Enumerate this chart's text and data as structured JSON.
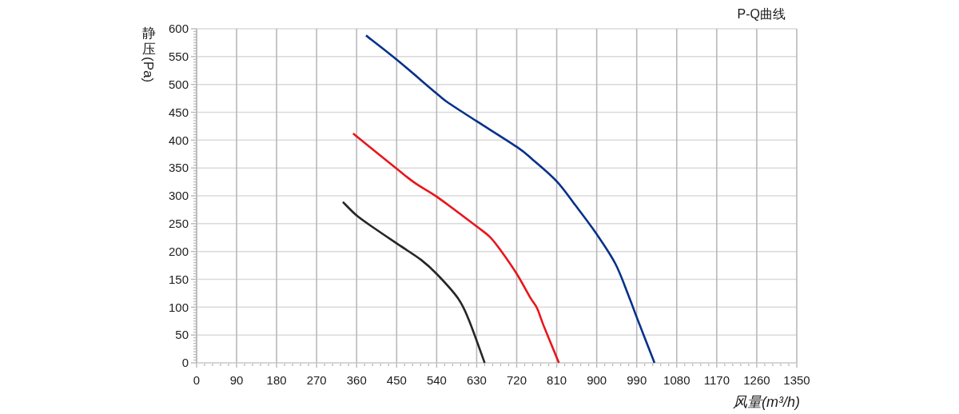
{
  "chart_data": {
    "type": "line",
    "title": "P-Q曲线",
    "xlabel": "风量(m³/h)",
    "ylabel": "静压(Pa)",
    "xlim": [
      0,
      1350
    ],
    "ylim": [
      0,
      600
    ],
    "xticks": [
      0,
      90,
      180,
      270,
      360,
      450,
      540,
      630,
      720,
      810,
      900,
      990,
      1080,
      1170,
      1260,
      1350
    ],
    "yticks": [
      0,
      50,
      100,
      150,
      200,
      250,
      300,
      350,
      400,
      450,
      500,
      550,
      600
    ],
    "grid": true,
    "series": [
      {
        "color": "#06318a",
        "x": [
          381,
          451,
          541,
          570,
          630,
          720,
          756,
          810,
          852,
          900,
          942,
          972,
          990,
          1030
        ],
        "values": [
          588,
          544,
          483,
          465,
          434,
          388,
          365,
          326,
          283,
          231,
          178,
          120,
          82,
          0
        ]
      },
      {
        "color": "#e8161c",
        "x": [
          352,
          451,
          493,
          541,
          630,
          660,
          684,
          720,
          750,
          766,
          780,
          815
        ],
        "values": [
          412,
          348,
          322,
          298,
          245,
          226,
          202,
          160,
          118,
          98,
          68,
          0
        ]
      },
      {
        "color": "#262626",
        "x": [
          329,
          361,
          403,
          451,
          505,
          541,
          588,
          612,
          648
        ],
        "values": [
          289,
          264,
          240,
          214,
          185,
          159,
          116,
          78,
          0
        ]
      }
    ]
  }
}
